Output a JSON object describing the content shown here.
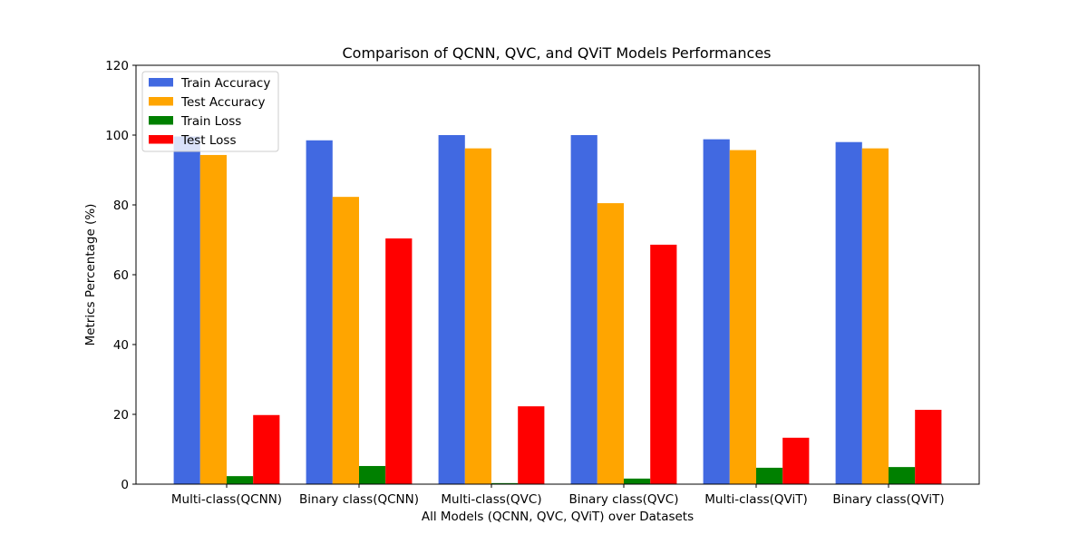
{
  "chart_data": {
    "type": "bar",
    "title": "Comparison of QCNN, QVC, and QViT Models Performances",
    "xlabel": "All Models (QCNN, QVC, QViT) over Datasets",
    "ylabel": "Metrics Percentage (%)",
    "categories": [
      "Multi-class(QCNN)",
      "Binary class(QCNN)",
      "Multi-class(QVC)",
      "Binary class(QVC)",
      "Multi-class(QViT)",
      "Binary class(QViT)"
    ],
    "series": [
      {
        "name": "Train Accuracy",
        "color": "#4169e1",
        "values": [
          99.6,
          98.5,
          100.0,
          100.0,
          98.8,
          98.0
        ]
      },
      {
        "name": "Test Accuracy",
        "color": "#ffa500",
        "values": [
          94.3,
          82.3,
          96.2,
          80.5,
          95.7,
          96.2
        ]
      },
      {
        "name": "Train Loss",
        "color": "#008000",
        "values": [
          2.3,
          5.2,
          0.3,
          1.6,
          4.7,
          4.9
        ]
      },
      {
        "name": "Test Loss",
        "color": "#ff0000",
        "values": [
          19.8,
          70.4,
          22.3,
          68.6,
          13.3,
          21.3
        ]
      }
    ],
    "ylim": [
      0,
      120
    ],
    "yticks": [
      0,
      20,
      40,
      60,
      80,
      100,
      120
    ],
    "grid": false,
    "legend_position": "top-left"
  }
}
